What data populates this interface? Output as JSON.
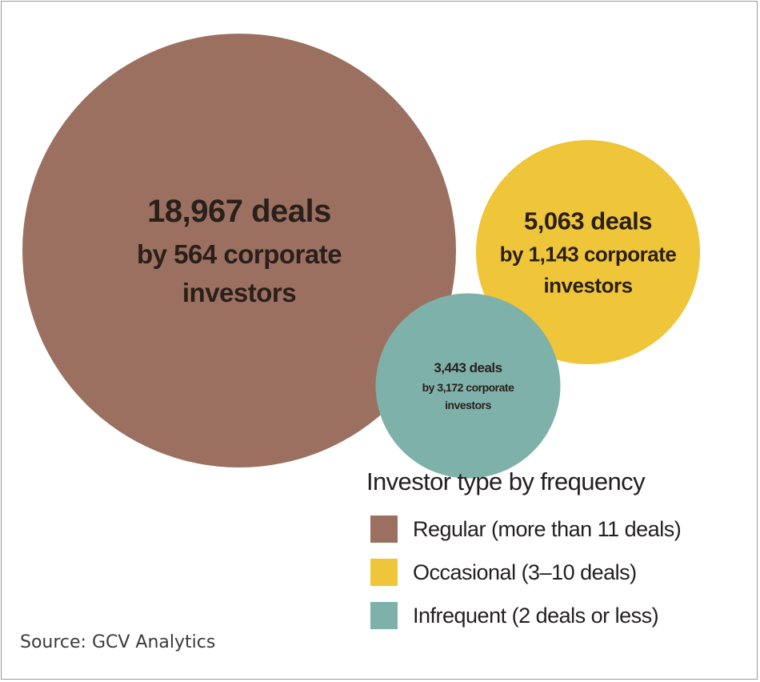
{
  "chart_data": {
    "type": "bubble",
    "series": [
      {
        "category": "Regular (more than 11 deals)",
        "deals": 18967,
        "investors": 564,
        "deals_label": "18,967 deals",
        "investors_label_line1": "by 564 corporate",
        "investors_label_line2": "investors",
        "color": "#9b7060"
      },
      {
        "category": "Occasional (3–10 deals)",
        "deals": 5063,
        "investors": 1143,
        "deals_label": "5,063 deals",
        "investors_label_line1": "by 1,143 corporate",
        "investors_label_line2": "investors",
        "color": "#efc53a"
      },
      {
        "category": "Infrequent (2 deals or less)",
        "deals": 3443,
        "investors": 3172,
        "deals_label": "3,443 deals",
        "investors_label_line1": "by 3,172 corporate",
        "investors_label_line2": "investors",
        "color": "#7eb1aa"
      }
    ],
    "legend": {
      "title": "Investor type by frequency",
      "placement": "bottom-right"
    }
  },
  "source": "Source: GCV Analytics"
}
